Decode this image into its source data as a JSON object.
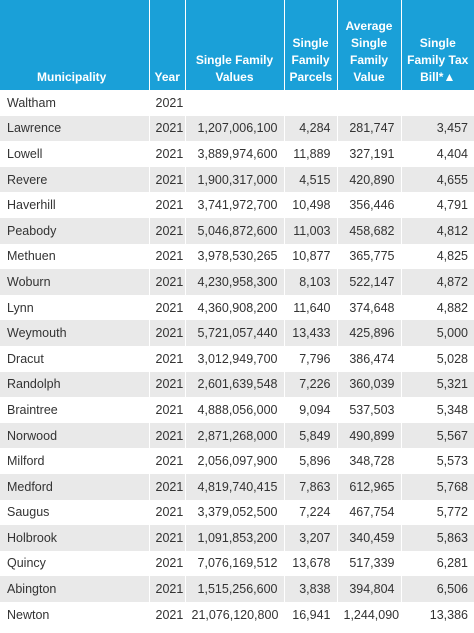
{
  "header": {
    "municipality": "Municipality",
    "year": "Year",
    "values": "Single Family Values",
    "parcels": "Single Family Parcels",
    "average": "Average Single Family Value",
    "tax": "Single Family Tax Bill*▲"
  },
  "rows": [
    {
      "municipality": "Waltham",
      "year": "2021",
      "values": "",
      "parcels": "",
      "average": "",
      "tax": ""
    },
    {
      "municipality": "Lawrence",
      "year": "2021",
      "values": "1,207,006,100",
      "parcels": "4,284",
      "average": "281,747",
      "tax": "3,457"
    },
    {
      "municipality": "Lowell",
      "year": "2021",
      "values": "3,889,974,600",
      "parcels": "11,889",
      "average": "327,191",
      "tax": "4,404"
    },
    {
      "municipality": "Revere",
      "year": "2021",
      "values": "1,900,317,000",
      "parcels": "4,515",
      "average": "420,890",
      "tax": "4,655"
    },
    {
      "municipality": "Haverhill",
      "year": "2021",
      "values": "3,741,972,700",
      "parcels": "10,498",
      "average": "356,446",
      "tax": "4,791"
    },
    {
      "municipality": "Peabody",
      "year": "2021",
      "values": "5,046,872,600",
      "parcels": "11,003",
      "average": "458,682",
      "tax": "4,812"
    },
    {
      "municipality": "Methuen",
      "year": "2021",
      "values": "3,978,530,265",
      "parcels": "10,877",
      "average": "365,775",
      "tax": "4,825"
    },
    {
      "municipality": "Woburn",
      "year": "2021",
      "values": "4,230,958,300",
      "parcels": "8,103",
      "average": "522,147",
      "tax": "4,872"
    },
    {
      "municipality": "Lynn",
      "year": "2021",
      "values": "4,360,908,200",
      "parcels": "11,640",
      "average": "374,648",
      "tax": "4,882"
    },
    {
      "municipality": "Weymouth",
      "year": "2021",
      "values": "5,721,057,440",
      "parcels": "13,433",
      "average": "425,896",
      "tax": "5,000"
    },
    {
      "municipality": "Dracut",
      "year": "2021",
      "values": "3,012,949,700",
      "parcels": "7,796",
      "average": "386,474",
      "tax": "5,028"
    },
    {
      "municipality": "Randolph",
      "year": "2021",
      "values": "2,601,639,548",
      "parcels": "7,226",
      "average": "360,039",
      "tax": "5,321"
    },
    {
      "municipality": "Braintree",
      "year": "2021",
      "values": "4,888,056,000",
      "parcels": "9,094",
      "average": "537,503",
      "tax": "5,348"
    },
    {
      "municipality": "Norwood",
      "year": "2021",
      "values": "2,871,268,000",
      "parcels": "5,849",
      "average": "490,899",
      "tax": "5,567"
    },
    {
      "municipality": "Milford",
      "year": "2021",
      "values": "2,056,097,900",
      "parcels": "5,896",
      "average": "348,728",
      "tax": "5,573"
    },
    {
      "municipality": "Medford",
      "year": "2021",
      "values": "4,819,740,415",
      "parcels": "7,863",
      "average": "612,965",
      "tax": "5,768"
    },
    {
      "municipality": "Saugus",
      "year": "2021",
      "values": "3,379,052,500",
      "parcels": "7,224",
      "average": "467,754",
      "tax": "5,772"
    },
    {
      "municipality": "Holbrook",
      "year": "2021",
      "values": "1,091,853,200",
      "parcels": "3,207",
      "average": "340,459",
      "tax": "5,863"
    },
    {
      "municipality": "Quincy",
      "year": "2021",
      "values": "7,076,169,512",
      "parcels": "13,678",
      "average": "517,339",
      "tax": "6,281"
    },
    {
      "municipality": "Abington",
      "year": "2021",
      "values": "1,515,256,600",
      "parcels": "3,838",
      "average": "394,804",
      "tax": "6,506"
    },
    {
      "municipality": "Newton",
      "year": "2021",
      "values": "21,076,120,800",
      "parcels": "16,941",
      "average": "1,244,090",
      "tax": "13,386"
    }
  ]
}
